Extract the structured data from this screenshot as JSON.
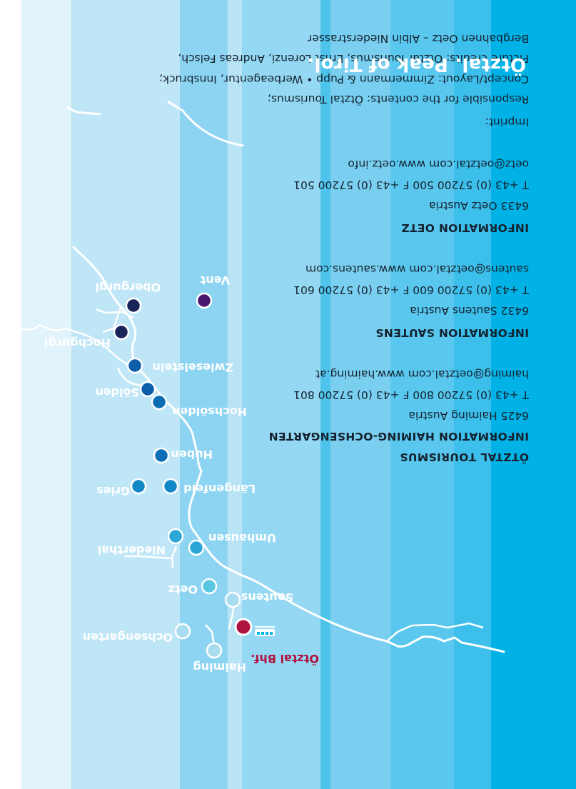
{
  "headline": "Ötztal. Peak of Tirol.",
  "map": {
    "places": {
      "haiming": "Haiming",
      "ochsengarten": "Ochsengarten",
      "sautens": "Sautens",
      "oetz": "Oetz",
      "umhausen": "Umhausen",
      "niederthai": "Niederthai",
      "laengenfeld": "Längenfeld",
      "gries": "Gries",
      "huben": "Huben",
      "hochsoelden": "Hochsölden",
      "soelden": "Sölden",
      "zwieselstein": "Zwieselstein",
      "hochgurgl": "Hochgurgl",
      "obergurgl": "Obergurgl",
      "vent": "Vent"
    },
    "station_label": "Ötztal Bhf.",
    "train_icon": "train-icon",
    "colors": {
      "station": "#b0123f",
      "river": "#ffffff"
    }
  },
  "info_oetztal": {
    "title": "ÖTZTAL TOURISMUS",
    "subtitle": "INFORMATION HAIMING-OCHSENGARTEN",
    "address": "6425 Haiming Austria",
    "phone": "T +43 (0) 57200 800 F +43 (0) 57200 801",
    "web": "haiming@oetztal.com www.haiming.at"
  },
  "info_sautens": {
    "title": "INFORMATION SAUTENS",
    "address": "6432 Sautens Austria",
    "phone": "T +43 (0) 57200 600 F +43 (0) 57200 601",
    "web": "sautens@oetztal.com www.sautens.com"
  },
  "info_oetz": {
    "title": "INFORMATION OETZ",
    "address": "6433 Oetz Austria",
    "phone": "T +43 (0) 57200 500 F +43 (0) 57200 501",
    "web": "oetz@oetztal.com www.oetz.info"
  },
  "imprint": {
    "title": "Imprint:",
    "lines": [
      "Responsible for the contents: Ötztal Tourismus;",
      "Concept/Layout: Zimmermann & Pupp • Werbeagentur, Innsbruck;",
      "Picture credits: Ötztal Tourismus, Ernst Lorenzi, Andreas Felsch,",
      "Bergbahnen Oetz – Albin Niederstrasser"
    ]
  },
  "colors": {
    "stripes": [
      "#00b2e6",
      "#4ec3ec",
      "#7dd0f0",
      "#99d9f3",
      "#bfe6f7",
      "#e1f3fb"
    ]
  }
}
